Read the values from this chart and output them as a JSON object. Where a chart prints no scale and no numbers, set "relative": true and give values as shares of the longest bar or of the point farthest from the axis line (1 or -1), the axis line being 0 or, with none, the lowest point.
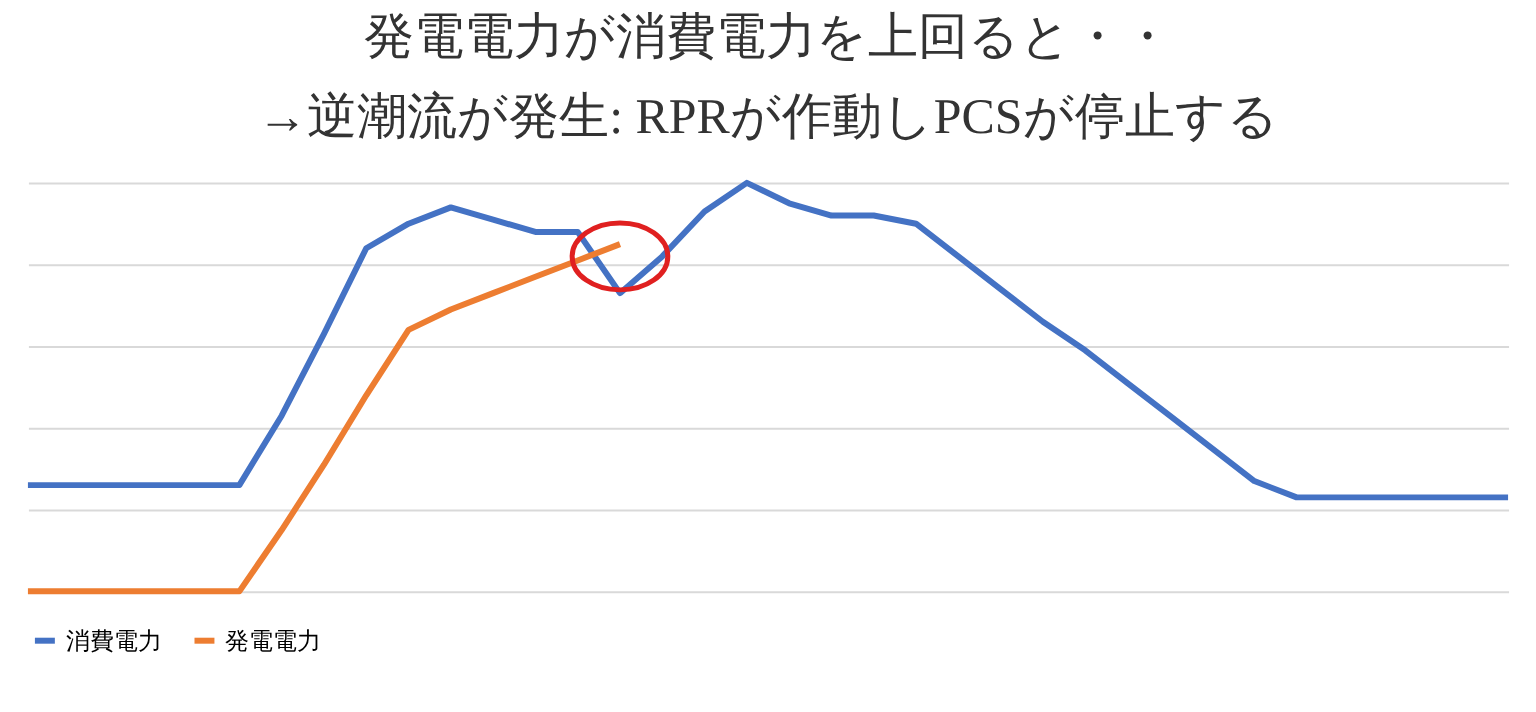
{
  "chart_data": {
    "type": "line",
    "title": "発電電力が消費電力を上回ると・・\n→逆潮流が発生: RPRが作動しPCSが停止する",
    "relative": true,
    "grid": "y",
    "legend": "bottom",
    "tick_labels": false,
    "categories": [
      null,
      null,
      null,
      null,
      null,
      null,
      null,
      null,
      null,
      null,
      null,
      null,
      null,
      null,
      null,
      null,
      null,
      null,
      null,
      null,
      null,
      null,
      null,
      null,
      null,
      null,
      null,
      null,
      null,
      null,
      null,
      null,
      null,
      null,
      null,
      null
    ],
    "series": [
      {
        "name": "消費電力",
        "color": "#4472c4",
        "values": [
          0.26,
          0.26,
          0.26,
          0.26,
          0.26,
          0.26,
          0.43,
          0.63,
          0.84,
          0.9,
          0.94,
          0.91,
          0.88,
          0.88,
          0.73,
          0.82,
          0.93,
          1.0,
          0.95,
          0.92,
          0.92,
          0.9,
          0.82,
          0.74,
          0.66,
          0.59,
          0.51,
          0.43,
          0.35,
          0.27,
          0.23,
          0.23,
          0.23,
          0.23,
          0.23,
          0.23
        ]
      },
      {
        "name": "発電電力",
        "color": "#ed7d31",
        "values": [
          0.0,
          0.0,
          0.0,
          0.0,
          0.0,
          0.0,
          0.15,
          0.31,
          0.48,
          0.64,
          0.69,
          0.73,
          0.77,
          0.81,
          0.85,
          null,
          null,
          null,
          null,
          null,
          null,
          null,
          null,
          null,
          null,
          null,
          null,
          null,
          null,
          null,
          null,
          null,
          null,
          null,
          null,
          null
        ]
      }
    ]
  }
}
